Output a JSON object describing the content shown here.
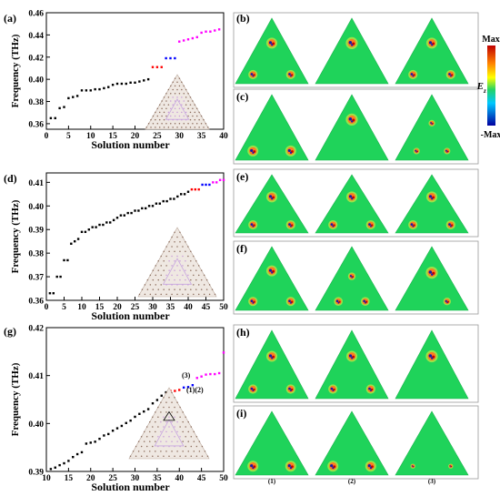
{
  "panel_labels": [
    "(a)",
    "(b)",
    "(c)",
    "(d)",
    "(e)",
    "(f)",
    "(g)",
    "(h)",
    "(i)"
  ],
  "colorbar": {
    "max_label": "Max",
    "min_label": "-Max",
    "field_label": "E",
    "field_sub": "z"
  },
  "column_labels": [
    "(1)",
    "(2)",
    "(3)"
  ],
  "annotations": {
    "g_3": "(3)",
    "g_12": "(1)(2)"
  },
  "colors": {
    "black": "#000000",
    "red": "#ff0000",
    "blue": "#0000ff",
    "magenta": "#ff00ff",
    "field_green": "#1fd35a"
  },
  "chart_data": [
    {
      "type": "scatter",
      "panel": "(a)",
      "xlabel": "Solution number",
      "ylabel": "Frequency (THz)",
      "xlim": [
        0,
        40
      ],
      "ylim": [
        0.355,
        0.46
      ],
      "xticks": [
        0,
        5,
        10,
        15,
        20,
        25,
        30,
        35,
        40
      ],
      "yticks": [
        0.36,
        0.38,
        0.4,
        0.42,
        0.44,
        0.46
      ],
      "series": [
        {
          "color": "black",
          "x": [
            1,
            2,
            3,
            4,
            5,
            6,
            7,
            8,
            9,
            10,
            11,
            12,
            13,
            14,
            15,
            16,
            17,
            18,
            19,
            20,
            21,
            22,
            23
          ],
          "y": [
            0.365,
            0.365,
            0.374,
            0.375,
            0.383,
            0.384,
            0.385,
            0.39,
            0.39,
            0.39,
            0.391,
            0.391,
            0.392,
            0.393,
            0.395,
            0.396,
            0.396,
            0.396,
            0.397,
            0.397,
            0.398,
            0.399,
            0.4
          ]
        },
        {
          "color": "red",
          "x": [
            24,
            25,
            26
          ],
          "y": [
            0.411,
            0.411,
            0.411
          ]
        },
        {
          "color": "blue",
          "x": [
            27,
            28,
            29
          ],
          "y": [
            0.419,
            0.419,
            0.419
          ]
        },
        {
          "color": "magenta",
          "x": [
            30,
            31,
            32,
            33,
            34,
            35,
            36,
            37,
            38,
            39
          ],
          "y": [
            0.434,
            0.435,
            0.436,
            0.437,
            0.438,
            0.442,
            0.443,
            0.443,
            0.444,
            0.445
          ]
        }
      ]
    },
    {
      "type": "scatter",
      "panel": "(d)",
      "xlabel": "Solution number",
      "ylabel": "Frequency (THz)",
      "xlim": [
        0,
        50
      ],
      "ylim": [
        0.36,
        0.414
      ],
      "xticks": [
        0,
        5,
        10,
        15,
        20,
        25,
        30,
        35,
        40,
        45,
        50
      ],
      "yticks": [
        0.36,
        0.37,
        0.38,
        0.39,
        0.4,
        0.41
      ],
      "series": [
        {
          "color": "black",
          "x": [
            1,
            2,
            3,
            4,
            5,
            6,
            7,
            8,
            9,
            10,
            11,
            12,
            13,
            14,
            15,
            16,
            17,
            18,
            19,
            20,
            21,
            22,
            23,
            24,
            25,
            26,
            27,
            28,
            29,
            30,
            31,
            32,
            33,
            34,
            35,
            36,
            37,
            38,
            39,
            40
          ],
          "y": [
            0.363,
            0.363,
            0.37,
            0.37,
            0.377,
            0.377,
            0.384,
            0.385,
            0.386,
            0.389,
            0.389,
            0.39,
            0.391,
            0.391,
            0.392,
            0.392,
            0.393,
            0.393,
            0.394,
            0.395,
            0.396,
            0.396,
            0.397,
            0.397,
            0.398,
            0.398,
            0.399,
            0.399,
            0.4,
            0.4,
            0.401,
            0.401,
            0.402,
            0.402,
            0.403,
            0.403,
            0.404,
            0.405,
            0.405,
            0.406
          ]
        },
        {
          "color": "red",
          "x": [
            41,
            42,
            43
          ],
          "y": [
            0.407,
            0.407,
            0.407
          ]
        },
        {
          "color": "blue",
          "x": [
            44,
            45,
            46
          ],
          "y": [
            0.409,
            0.409,
            0.409
          ]
        },
        {
          "color": "magenta",
          "x": [
            47,
            48,
            49,
            50
          ],
          "y": [
            0.41,
            0.41,
            0.411,
            0.411
          ]
        }
      ]
    },
    {
      "type": "scatter",
      "panel": "(g)",
      "xlabel": "Solution number",
      "ylabel": "Frequency (THz)",
      "xlim": [
        10,
        50
      ],
      "ylim": [
        0.39,
        0.42
      ],
      "xticks": [
        10,
        15,
        20,
        25,
        30,
        35,
        40,
        45,
        50
      ],
      "yticks": [
        0.39,
        0.4,
        0.41,
        0.42
      ],
      "series": [
        {
          "color": "black",
          "x": [
            11,
            12,
            13,
            14,
            15,
            16,
            17,
            18,
            19,
            20,
            21,
            22,
            23,
            24,
            25,
            26,
            27,
            28,
            29,
            30,
            31,
            32,
            33,
            34,
            35,
            36,
            37
          ],
          "y": [
            0.3905,
            0.3908,
            0.3913,
            0.3917,
            0.3922,
            0.393,
            0.3936,
            0.394,
            0.3958,
            0.396,
            0.3962,
            0.3968,
            0.3975,
            0.3978,
            0.3985,
            0.399,
            0.3995,
            0.4001,
            0.4006,
            0.4014,
            0.402,
            0.4025,
            0.403,
            0.4042,
            0.4049,
            0.4058,
            0.4065
          ]
        },
        {
          "color": "red",
          "x": [
            38,
            39,
            40
          ],
          "y": [
            0.4068,
            0.4068,
            0.407
          ]
        },
        {
          "color": "blue",
          "x": [
            41,
            42,
            43
          ],
          "y": [
            0.4075,
            0.4076,
            0.408
          ]
        },
        {
          "color": "magenta",
          "x": [
            44,
            45,
            46,
            47,
            48,
            49,
            50
          ],
          "y": [
            0.4095,
            0.4098,
            0.4102,
            0.4103,
            0.4103,
            0.4105,
            0.4148
          ]
        }
      ]
    }
  ]
}
